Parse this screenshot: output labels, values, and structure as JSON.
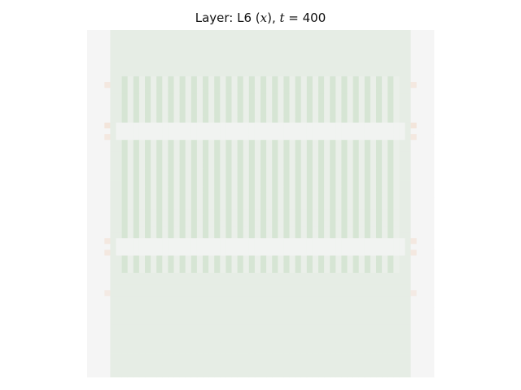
{
  "chart_data": {
    "type": "heatmap",
    "title": {
      "prefix": "Layer: L6 (",
      "var": "x",
      "middle": "), ",
      "t_symbol": "t",
      "equals": " = ",
      "t_value": "400"
    },
    "xlabel": "",
    "ylabel": "",
    "axes_visible": false,
    "grid": false,
    "colormap": "diverging-orange-white-green",
    "value_range": [
      -1,
      1
    ],
    "n_cols": 60,
    "n_rows": 60,
    "edge_columns": {
      "count": 4,
      "value": 0.0
    },
    "background_value": 0.08,
    "stripe_region": {
      "row_range": [
        8,
        41
      ],
      "column_period": 2,
      "on_value": 0.17,
      "off_value": 0.06
    },
    "bright_bands": [
      {
        "rows": [
          16,
          18
        ],
        "value": 0.02
      },
      {
        "rows": [
          36,
          38
        ],
        "value": 0.02
      }
    ],
    "edge_marks": [
      {
        "row": 9,
        "value": -0.1
      },
      {
        "row": 16,
        "value": -0.12
      },
      {
        "row": 18,
        "value": -0.1
      },
      {
        "row": 36,
        "value": -0.1
      },
      {
        "row": 38,
        "value": -0.1
      },
      {
        "row": 45,
        "value": -0.08
      }
    ]
  }
}
